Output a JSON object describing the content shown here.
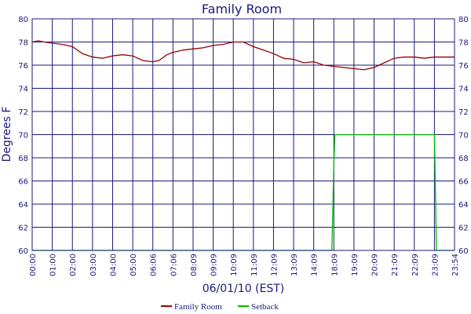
{
  "chart_data": {
    "type": "line",
    "title": "Family Room",
    "xlabel": "06/01/10 (EST)",
    "ylabel": "Degrees F",
    "ylim": [
      60,
      80
    ],
    "yticks": [
      60,
      62,
      64,
      66,
      68,
      70,
      72,
      74,
      76,
      78,
      80
    ],
    "xticks": [
      "00:00",
      "01:00",
      "02:00",
      "03:00",
      "04:00",
      "05:00",
      "06:06",
      "07:06",
      "08:09",
      "09:09",
      "10:09",
      "11:09",
      "12:09",
      "13:09",
      "14:09",
      "18:09",
      "19:09",
      "20:09",
      "21:09",
      "22:09",
      "23:09",
      "23:54"
    ],
    "grid": true,
    "legend": "bottom",
    "colors": {
      "family_room": "#990000",
      "setback": "#00bb00",
      "axis": "#1a1a7a",
      "grid": "#1a1a7a"
    },
    "series": [
      {
        "name": "Family Room",
        "x": [
          0,
          0.3,
          0.6,
          1,
          1.5,
          2,
          2.5,
          3,
          3.5,
          4,
          4.5,
          5,
          5.5,
          6,
          6.3,
          6.7,
          7,
          7.5,
          8,
          8.5,
          9,
          9.5,
          10,
          10.5,
          11,
          11.5,
          12,
          12.5,
          13,
          13.5,
          14,
          14.5,
          15,
          15.5,
          16,
          16.5,
          17,
          17.5,
          18,
          18.5,
          19,
          19.5,
          20,
          20.5,
          21
        ],
        "y": [
          78.0,
          78.1,
          78.0,
          77.9,
          77.8,
          77.6,
          77.0,
          76.7,
          76.6,
          76.8,
          76.9,
          76.8,
          76.4,
          76.3,
          76.4,
          76.9,
          77.1,
          77.3,
          77.4,
          77.5,
          77.7,
          77.8,
          78.0,
          78.0,
          77.6,
          77.3,
          77.0,
          76.6,
          76.5,
          76.2,
          76.3,
          76.0,
          75.9,
          75.8,
          75.7,
          75.6,
          75.8,
          76.2,
          76.6,
          76.7,
          76.7,
          76.6,
          76.7,
          76.7,
          76.7
        ]
      },
      {
        "name": "Setback",
        "x": [
          0,
          14.9,
          15.0,
          15.05,
          20.0,
          20.05,
          20.1,
          21
        ],
        "y": [
          60,
          60,
          67.5,
          70,
          70,
          65,
          60,
          60
        ]
      }
    ]
  }
}
